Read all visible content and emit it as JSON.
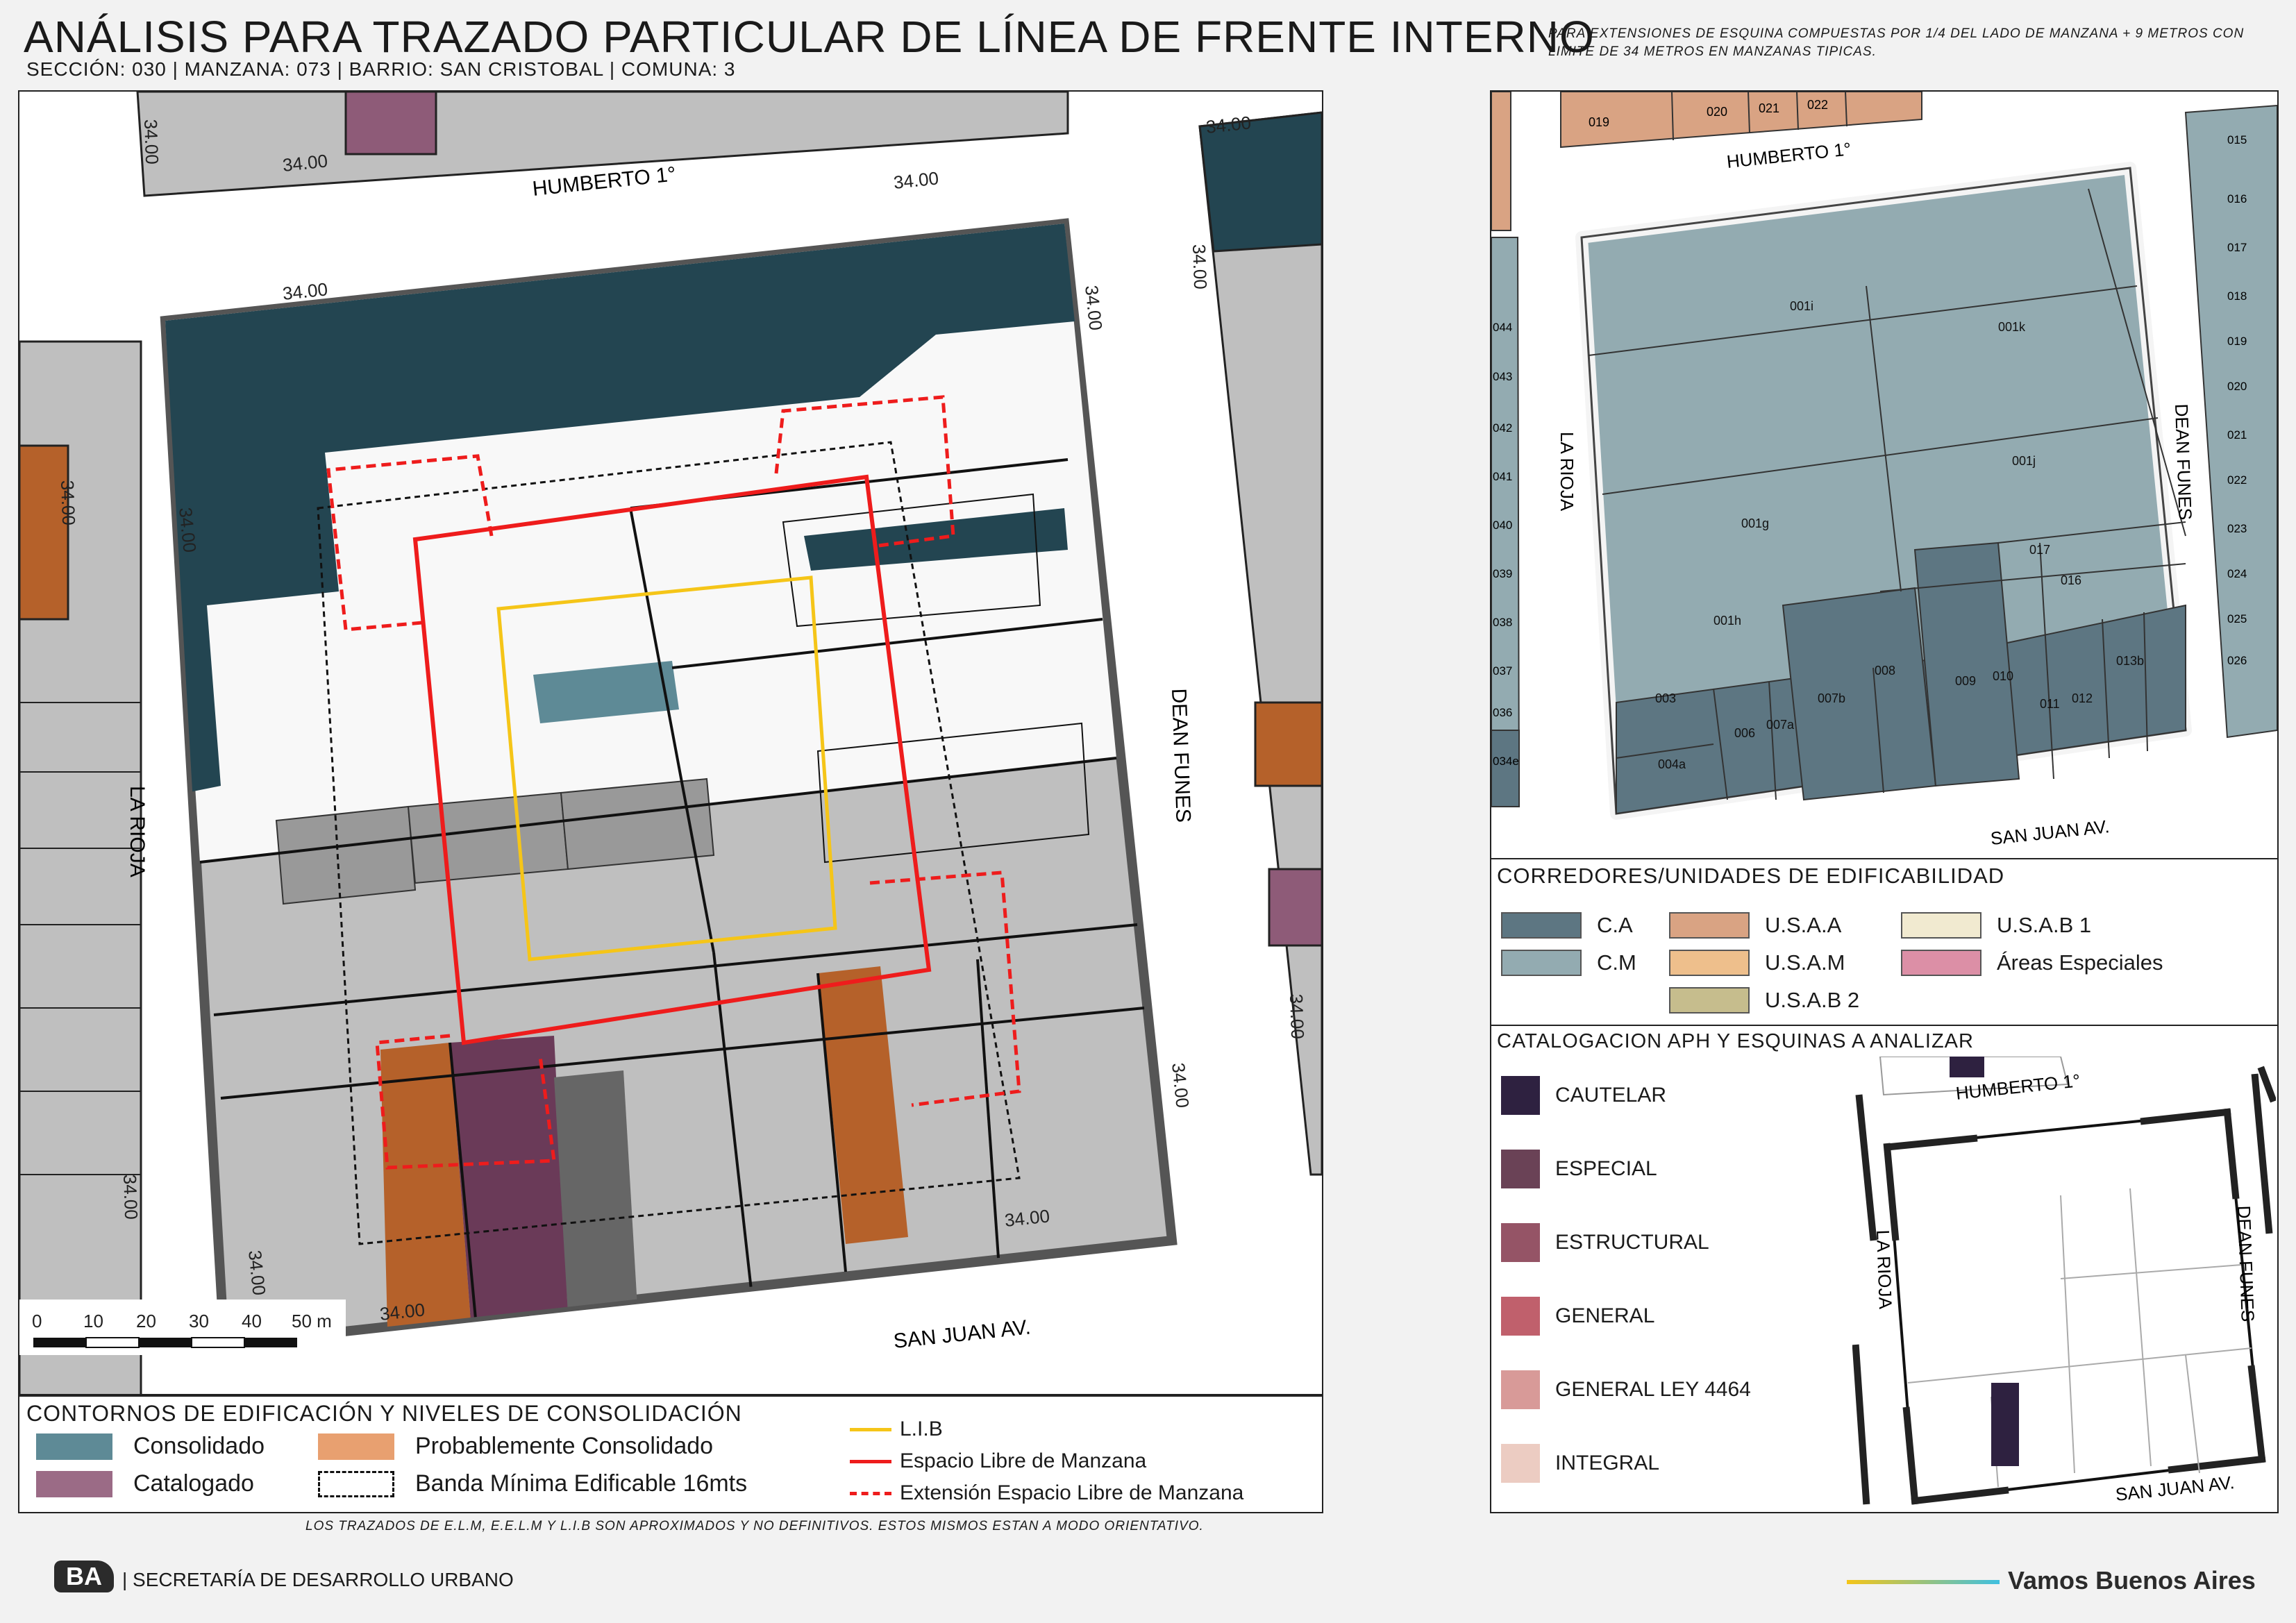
{
  "header": {
    "title": "ANÁLISIS PARA TRAZADO PARTICULAR DE LÍNEA DE FRENTE INTERNO",
    "subtitle": "SECCIÓN: 030 |  MANZANA: 073 | BARRIO: SAN CRISTOBAL | COMUNA: 3",
    "note": "PARA EXTENSIONES DE ESQUINA COMPUESTAS POR 1/4 DEL LADO DE MANZANA + 9 METROS CON LIMITE DE 34 METROS EN MANZANAS TIPICAS."
  },
  "main_map": {
    "streets": {
      "north": "HUMBERTO 1°",
      "west": "LA RIOJA",
      "east": "DEAN FUNES",
      "south": "SAN JUAN AV."
    },
    "dim_label": "34.00",
    "scale": {
      "ticks": [
        "0",
        "10",
        "20",
        "30",
        "40",
        "50 m"
      ]
    }
  },
  "legend_main": {
    "title": "CONTORNOS DE EDIFICACIÓN Y NIVELES DE CONSOLIDACIÓN",
    "consolidado": "Consolidado",
    "catalogado": "Catalogado",
    "prob_consolidado": "Probablemente Consolidado",
    "banda": "Banda Mínima Edificable 16mts",
    "lib": "L.I.B",
    "elm": "Espacio Libre de Manzana",
    "eelm": "Extensión Espacio Libre de Manzana",
    "colors": {
      "consolidado": "#5e8a96",
      "catalogado": "#9b6b86",
      "prob": "#e8a070",
      "lib": "#f5c518",
      "elm": "#ee1c1c"
    }
  },
  "right_map": {
    "streets": {
      "north": "HUMBERTO 1°",
      "west": "LA RIOJA",
      "east": "DEAN FUNES",
      "south": "SAN JUAN AV."
    },
    "parcels": [
      "001i",
      "001k",
      "001j",
      "001g",
      "017",
      "016",
      "001h",
      "008",
      "009",
      "010",
      "007b",
      "013b",
      "003",
      "006",
      "007a",
      "011",
      "012",
      "004a",
      "019",
      "020",
      "021",
      "022",
      "015",
      "016",
      "017",
      "018",
      "019",
      "020",
      "021",
      "022",
      "023",
      "024",
      "025",
      "026",
      "044",
      "043",
      "042",
      "041",
      "040",
      "039",
      "038",
      "037",
      "036",
      "034e"
    ]
  },
  "legend_corredores": {
    "title": "CORREDORES/UNIDADES DE EDIFICABILIDAD",
    "items": [
      {
        "label": "C.A",
        "color": "#5d7682"
      },
      {
        "label": "C.M",
        "color": "#93abb1"
      },
      {
        "label": "U.S.A.A",
        "color": "#d9a383"
      },
      {
        "label": "U.S.A.M",
        "color": "#eebf8c"
      },
      {
        "label": "U.S.A.B 2",
        "color": "#c6bd8d"
      },
      {
        "label": "U.S.A.B 1",
        "color": "#f1ead0"
      },
      {
        "label": "Áreas Especiales",
        "color": "#dc8fa6"
      }
    ]
  },
  "legend_aph": {
    "title": "CATALOGACION APH Y ESQUINAS A ANALIZAR",
    "items": [
      {
        "label": "CAUTELAR",
        "color": "#2e2140"
      },
      {
        "label": "ESPECIAL",
        "color": "#6a4256"
      },
      {
        "label": "ESTRUCTURAL",
        "color": "#955466"
      },
      {
        "label": "GENERAL",
        "color": "#c0606c"
      },
      {
        "label": "GENERAL LEY 4464",
        "color": "#d89a98"
      },
      {
        "label": "INTEGRAL",
        "color": "#ecccc2"
      }
    ],
    "minimap_streets": {
      "north": "HUMBERTO 1°",
      "west": "LA RIOJA",
      "east": "DEAN FUNES",
      "south": "SAN JUAN AV."
    }
  },
  "footer": {
    "note": "LOS TRAZADOS DE E.L.M, E.E.L.M Y L.I.B SON APROXIMADOS Y NO DEFINITIVOS. ESTOS MISMOS ESTAN A MODO ORIENTATIVO.",
    "org_logo": "BA",
    "org": "| SECRETARÍA DE DESARROLLO URBANO",
    "brand": "Vamos Buenos Aires"
  }
}
